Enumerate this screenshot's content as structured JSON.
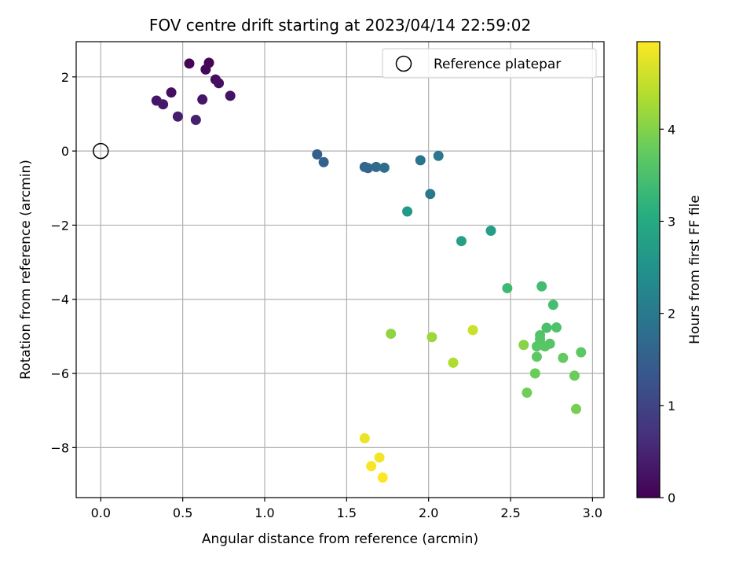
{
  "chart_data": {
    "type": "scatter",
    "title": "FOV centre drift starting at 2023/04/14 22:59:02",
    "xlabel": "Angular distance from reference (arcmin)",
    "ylabel": "Rotation from reference (arcmin)",
    "xlim": [
      -0.15,
      3.07
    ],
    "ylim": [
      -9.35,
      2.95
    ],
    "xticks": [
      0.0,
      0.5,
      1.0,
      1.5,
      2.0,
      2.5,
      3.0
    ],
    "xtick_labels": [
      "0.0",
      "0.5",
      "1.0",
      "1.5",
      "2.0",
      "2.5",
      "3.0"
    ],
    "yticks": [
      2,
      0,
      -2,
      -4,
      -6,
      -8
    ],
    "ytick_labels": [
      "2",
      "0",
      "−2",
      "−4",
      "−6",
      "−8"
    ],
    "grid": true,
    "legend": {
      "placement": "top-right",
      "entries": [
        "Reference platepar"
      ]
    },
    "reference": {
      "x": 0.0,
      "y": 0.0,
      "marker": "open-circle"
    },
    "colorbar": {
      "label": "Hours from first FF file",
      "min": 0,
      "max": 4.95,
      "ticks": [
        0,
        1,
        2,
        3,
        4
      ],
      "tick_labels": [
        "0",
        "1",
        "2",
        "3",
        "4"
      ],
      "colormap": "viridis"
    },
    "points": [
      {
        "x": 0.54,
        "y": 2.36,
        "c": 0.05
      },
      {
        "x": 0.66,
        "y": 2.38,
        "c": 0.05
      },
      {
        "x": 0.64,
        "y": 2.2,
        "c": 0.1
      },
      {
        "x": 0.7,
        "y": 1.93,
        "c": 0.15
      },
      {
        "x": 0.72,
        "y": 1.83,
        "c": 0.2
      },
      {
        "x": 0.43,
        "y": 1.58,
        "c": 0.2
      },
      {
        "x": 0.79,
        "y": 1.49,
        "c": 0.25
      },
      {
        "x": 0.34,
        "y": 1.36,
        "c": 0.3
      },
      {
        "x": 0.62,
        "y": 1.39,
        "c": 0.3
      },
      {
        "x": 0.38,
        "y": 1.26,
        "c": 0.35
      },
      {
        "x": 0.47,
        "y": 0.93,
        "c": 0.4
      },
      {
        "x": 0.58,
        "y": 0.84,
        "c": 0.45
      },
      {
        "x": 1.32,
        "y": -0.09,
        "c": 1.5
      },
      {
        "x": 1.36,
        "y": -0.3,
        "c": 1.55
      },
      {
        "x": 1.61,
        "y": -0.43,
        "c": 1.6
      },
      {
        "x": 1.63,
        "y": -0.46,
        "c": 1.65
      },
      {
        "x": 1.68,
        "y": -0.43,
        "c": 1.7
      },
      {
        "x": 1.73,
        "y": -0.45,
        "c": 1.75
      },
      {
        "x": 1.95,
        "y": -0.25,
        "c": 1.9
      },
      {
        "x": 2.06,
        "y": -0.13,
        "c": 1.95
      },
      {
        "x": 2.01,
        "y": -1.16,
        "c": 2.0
      },
      {
        "x": 1.87,
        "y": -1.63,
        "c": 2.65
      },
      {
        "x": 2.38,
        "y": -2.15,
        "c": 2.75
      },
      {
        "x": 2.2,
        "y": -2.43,
        "c": 2.8
      },
      {
        "x": 2.48,
        "y": -3.7,
        "c": 3.35
      },
      {
        "x": 2.69,
        "y": -3.65,
        "c": 3.4
      },
      {
        "x": 2.76,
        "y": -4.15,
        "c": 3.45
      },
      {
        "x": 2.72,
        "y": -4.77,
        "c": 3.5
      },
      {
        "x": 2.78,
        "y": -4.76,
        "c": 3.55
      },
      {
        "x": 2.68,
        "y": -4.97,
        "c": 3.55
      },
      {
        "x": 2.68,
        "y": -5.08,
        "c": 3.6
      },
      {
        "x": 2.74,
        "y": -5.2,
        "c": 3.6
      },
      {
        "x": 2.71,
        "y": -5.27,
        "c": 3.65
      },
      {
        "x": 2.66,
        "y": -5.27,
        "c": 3.65
      },
      {
        "x": 2.93,
        "y": -5.43,
        "c": 3.7
      },
      {
        "x": 2.66,
        "y": -5.55,
        "c": 3.7
      },
      {
        "x": 2.82,
        "y": -5.58,
        "c": 3.75
      },
      {
        "x": 2.65,
        "y": -6.0,
        "c": 3.8
      },
      {
        "x": 2.89,
        "y": -6.06,
        "c": 3.8
      },
      {
        "x": 2.6,
        "y": -6.52,
        "c": 3.85
      },
      {
        "x": 2.9,
        "y": -6.96,
        "c": 3.9
      },
      {
        "x": 2.58,
        "y": -5.23,
        "c": 4.05
      },
      {
        "x": 1.77,
        "y": -4.93,
        "c": 4.1
      },
      {
        "x": 2.02,
        "y": -5.02,
        "c": 4.2
      },
      {
        "x": 2.15,
        "y": -5.71,
        "c": 4.35
      },
      {
        "x": 2.27,
        "y": -4.83,
        "c": 4.55
      },
      {
        "x": 1.61,
        "y": -7.75,
        "c": 4.8
      },
      {
        "x": 1.7,
        "y": -8.27,
        "c": 4.85
      },
      {
        "x": 1.65,
        "y": -8.5,
        "c": 4.9
      },
      {
        "x": 1.72,
        "y": -8.81,
        "c": 4.95
      }
    ]
  }
}
